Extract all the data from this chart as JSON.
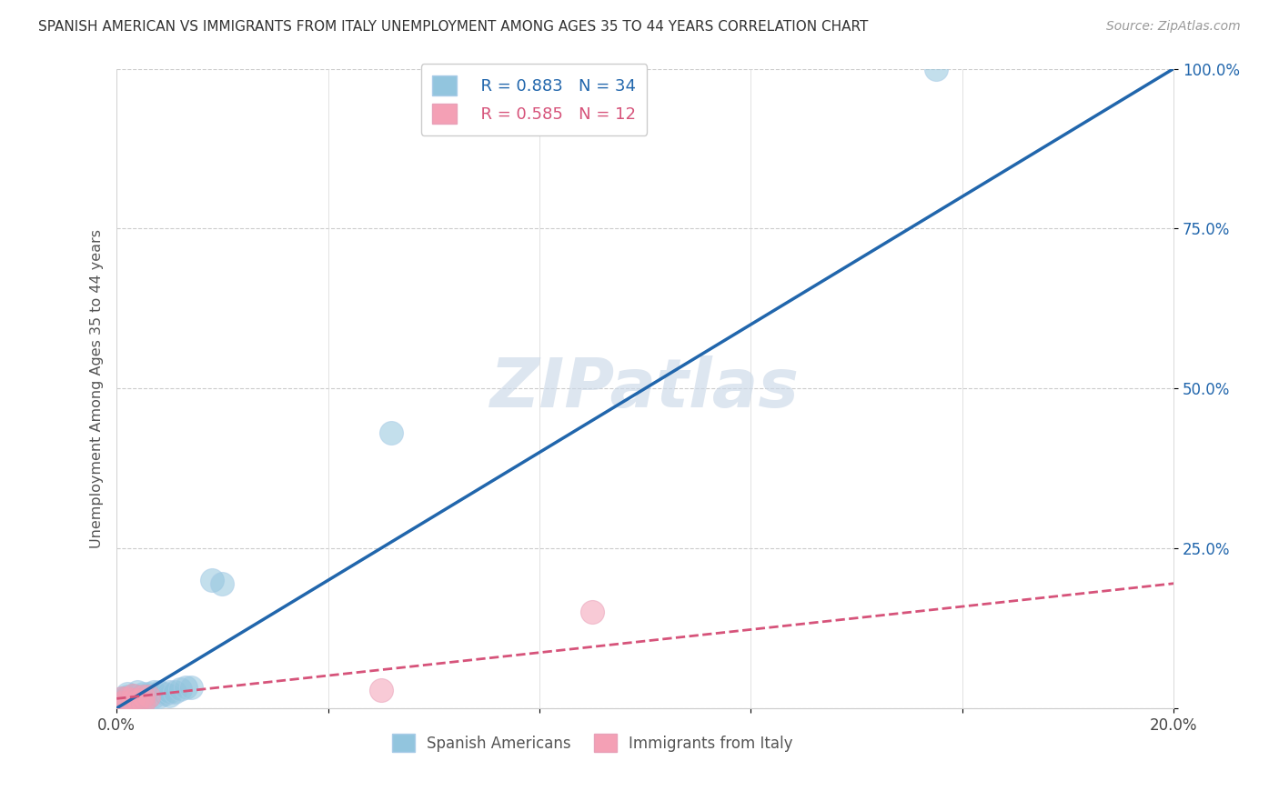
{
  "title": "SPANISH AMERICAN VS IMMIGRANTS FROM ITALY UNEMPLOYMENT AMONG AGES 35 TO 44 YEARS CORRELATION CHART",
  "source": "Source: ZipAtlas.com",
  "ylabel": "Unemployment Among Ages 35 to 44 years",
  "xlim": [
    0.0,
    0.2
  ],
  "ylim": [
    0.0,
    1.0
  ],
  "xticks": [
    0.0,
    0.04,
    0.08,
    0.12,
    0.16,
    0.2
  ],
  "xtick_labels": [
    "0.0%",
    "",
    "",
    "",
    "",
    "20.0%"
  ],
  "ytick_labels": [
    "",
    "25.0%",
    "50.0%",
    "75.0%",
    "100.0%"
  ],
  "yticks": [
    0.0,
    0.25,
    0.5,
    0.75,
    1.0
  ],
  "blue_color": "#92c5de",
  "blue_line_color": "#2166ac",
  "pink_color": "#f4a0b5",
  "pink_line_color": "#d6537a",
  "watermark": "ZIPatlas",
  "legend_r1": "R = 0.883",
  "legend_n1": "N = 34",
  "legend_r2": "R = 0.585",
  "legend_n2": "N = 12",
  "blue_line_x": [
    0.0,
    0.2
  ],
  "blue_line_y": [
    0.0,
    1.0
  ],
  "pink_line_x": [
    0.0,
    0.2
  ],
  "pink_line_y": [
    0.015,
    0.195
  ],
  "blue_points_x": [
    0.001,
    0.001,
    0.001,
    0.002,
    0.002,
    0.002,
    0.002,
    0.003,
    0.003,
    0.003,
    0.003,
    0.004,
    0.004,
    0.004,
    0.005,
    0.005,
    0.005,
    0.006,
    0.006,
    0.007,
    0.007,
    0.008,
    0.008,
    0.009,
    0.01,
    0.01,
    0.011,
    0.012,
    0.013,
    0.014,
    0.018,
    0.02,
    0.052,
    0.155
  ],
  "blue_points_y": [
    0.01,
    0.012,
    0.015,
    0.01,
    0.015,
    0.018,
    0.022,
    0.01,
    0.015,
    0.018,
    0.02,
    0.015,
    0.018,
    0.025,
    0.01,
    0.018,
    0.022,
    0.018,
    0.022,
    0.018,
    0.025,
    0.018,
    0.025,
    0.022,
    0.02,
    0.025,
    0.025,
    0.03,
    0.032,
    0.032,
    0.2,
    0.195,
    0.43,
    1.0
  ],
  "pink_points_x": [
    0.001,
    0.001,
    0.002,
    0.002,
    0.003,
    0.003,
    0.004,
    0.005,
    0.005,
    0.006,
    0.05,
    0.09
  ],
  "pink_points_y": [
    0.008,
    0.015,
    0.008,
    0.015,
    0.012,
    0.02,
    0.012,
    0.008,
    0.018,
    0.018,
    0.028,
    0.15
  ]
}
